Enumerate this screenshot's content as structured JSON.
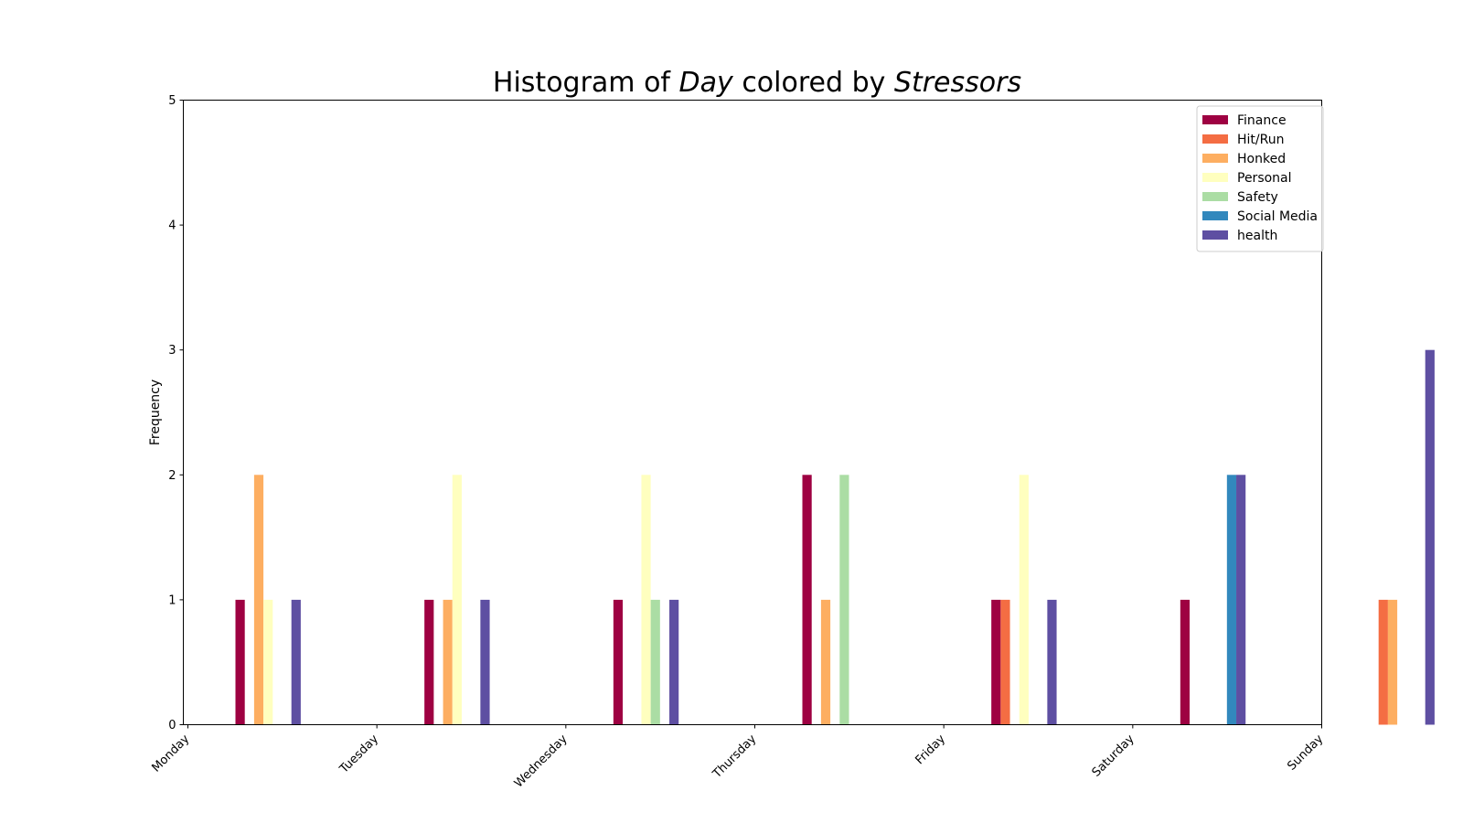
{
  "chart_data": {
    "type": "bar",
    "title": {
      "prefix": "Histogram of ",
      "var1": "Day",
      "middle": " colored by ",
      "var2": "Stressors"
    },
    "xlabel": "",
    "ylabel": "Frequency",
    "ylim": [
      0,
      5
    ],
    "yticks": [
      0,
      1,
      2,
      3,
      4,
      5
    ],
    "xticks": [
      "Monday",
      "Tuesday",
      "Wednesday",
      "Thursday",
      "Friday",
      "Saturday",
      "Sunday"
    ],
    "grid": false,
    "legend_position": "top-right",
    "series": [
      {
        "name": "Finance",
        "color": "#9e0142",
        "values": [
          1,
          1,
          1,
          2,
          1,
          1,
          0
        ]
      },
      {
        "name": "Hit/Run",
        "color": "#f46d43",
        "values": [
          0,
          0,
          0,
          0,
          1,
          0,
          1
        ]
      },
      {
        "name": "Honked",
        "color": "#fdae61",
        "values": [
          2,
          1,
          0,
          1,
          0,
          0,
          1
        ]
      },
      {
        "name": "Personal",
        "color": "#ffffbf",
        "values": [
          1,
          2,
          2,
          0,
          2,
          0,
          0
        ]
      },
      {
        "name": "Safety",
        "color": "#abdda4",
        "values": [
          0,
          0,
          1,
          2,
          0,
          0,
          0
        ]
      },
      {
        "name": "Social Media",
        "color": "#3288bd",
        "values": [
          0,
          0,
          0,
          0,
          0,
          2,
          0
        ]
      },
      {
        "name": "health",
        "color": "#5e4fa2",
        "values": [
          1,
          1,
          1,
          0,
          1,
          2,
          3
        ]
      }
    ]
  }
}
